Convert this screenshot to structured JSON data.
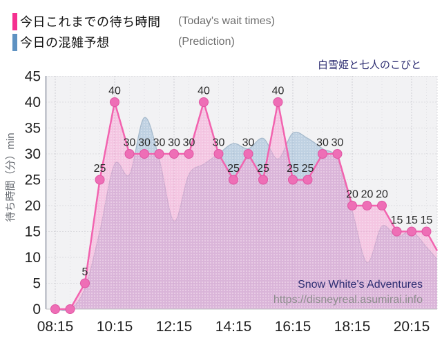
{
  "title": "白雪姫と七人のこびと",
  "legend": {
    "series1": {
      "label": "今日これまでの待ち時間",
      "label_en": "(Today's wait times)",
      "color": "#f53090"
    },
    "series2": {
      "label": "今日の混雑予想",
      "label_en": "(Prediction)",
      "color": "#5e92c2"
    }
  },
  "footer": {
    "attraction_en": "Snow White's Adventures",
    "url": "https://disneyreal.asumirai.info"
  },
  "chart_data": {
    "type": "line",
    "x": [
      "08:15",
      "08:45",
      "09:15",
      "09:45",
      "10:15",
      "10:45",
      "11:15",
      "11:45",
      "12:15",
      "12:45",
      "13:15",
      "13:45",
      "14:15",
      "14:45",
      "15:15",
      "15:45",
      "16:15",
      "16:45",
      "17:15",
      "17:45",
      "18:15",
      "18:45",
      "19:15",
      "19:45",
      "20:15",
      "20:45"
    ],
    "xticks_shown": [
      "08:15",
      "10:15",
      "12:15",
      "14:15",
      "16:15",
      "18:15",
      "20:15"
    ],
    "series": [
      {
        "name": "今日これまでの待ち時間",
        "name_en": "Today's wait times",
        "style": "linear-area-with-markers",
        "line_color": "#f263af",
        "marker_fill": "#ee6eb6",
        "marker_stroke": "#e054a2",
        "area_fill": "rgba(246,153,207,0.50)",
        "values": [
          0,
          0,
          5,
          25,
          40,
          30,
          30,
          30,
          30,
          30,
          40,
          30,
          25,
          30,
          25,
          40,
          25,
          25,
          30,
          30,
          20,
          20,
          20,
          15,
          15,
          15
        ],
        "point_labels_shown_for_nonzero_only": true,
        "right_edge_value": 11.3
      },
      {
        "name": "今日の混雑予想",
        "name_en": "Prediction",
        "style": "smooth-area",
        "line_color": "#a6bacc",
        "area_fill": "rgba(150,183,211,0.55)",
        "values": [
          0,
          0,
          4,
          15,
          28,
          26,
          37,
          29,
          17,
          26,
          28,
          30,
          32,
          31,
          33,
          29,
          34,
          33,
          31,
          29,
          19,
          9,
          16,
          14,
          15,
          12
        ],
        "right_edge_value": 9.6
      }
    ],
    "ylabel": "待ち時間（分）min",
    "ylim": [
      0,
      45
    ],
    "ytick_step": 5,
    "grid": true,
    "plot_bg": "#f2f2f4",
    "axis_text_color": "#1f1f1f"
  }
}
